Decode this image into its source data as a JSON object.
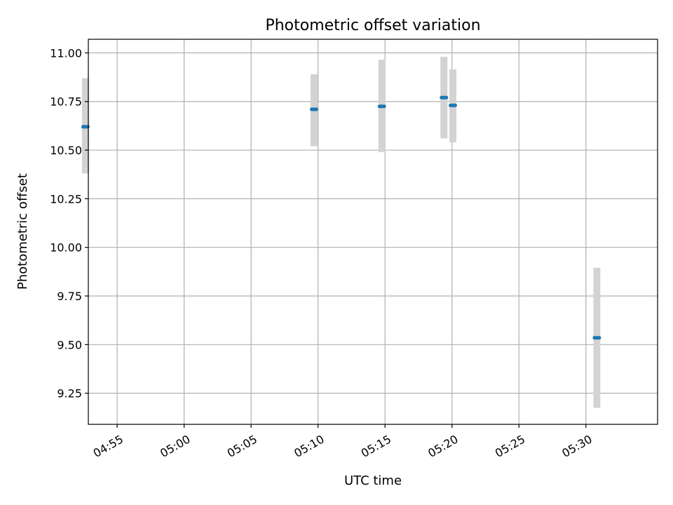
{
  "chart_data": {
    "type": "scatter",
    "title": "Photometric offset variation",
    "xlabel": "UTC time",
    "ylabel": "Photometric offset",
    "x_axis_type": "time",
    "xlim": [
      "04:52:51",
      "05:35:21"
    ],
    "ylim": [
      9.09,
      11.07
    ],
    "x_ticks": [
      "04:55",
      "05:00",
      "05:05",
      "05:10",
      "05:15",
      "05:20",
      "05:25",
      "05:30"
    ],
    "y_ticks": [
      "9.25",
      "9.50",
      "9.75",
      "10.00",
      "10.25",
      "10.50",
      "10.75",
      "11.00"
    ],
    "grid": true,
    "series": [
      {
        "points": [
          {
            "x": "04:52:38",
            "y": 10.62,
            "err_low": 10.38,
            "err_high": 10.87
          },
          {
            "x": "05:09:42",
            "y": 10.71,
            "err_low": 10.52,
            "err_high": 10.89
          },
          {
            "x": "05:14:46",
            "y": 10.725,
            "err_low": 10.49,
            "err_high": 10.965
          },
          {
            "x": "05:19:24",
            "y": 10.77,
            "err_low": 10.56,
            "err_high": 10.98
          },
          {
            "x": "05:20:04",
            "y": 10.73,
            "err_low": 10.54,
            "err_high": 10.915
          },
          {
            "x": "05:30:49",
            "y": 9.535,
            "err_low": 9.175,
            "err_high": 9.895
          }
        ]
      }
    ],
    "colors": {
      "marker": "#1f77b4",
      "errorbar": "#d3d3d3",
      "grid": "#b0b0b0",
      "axes": "#000000"
    }
  }
}
